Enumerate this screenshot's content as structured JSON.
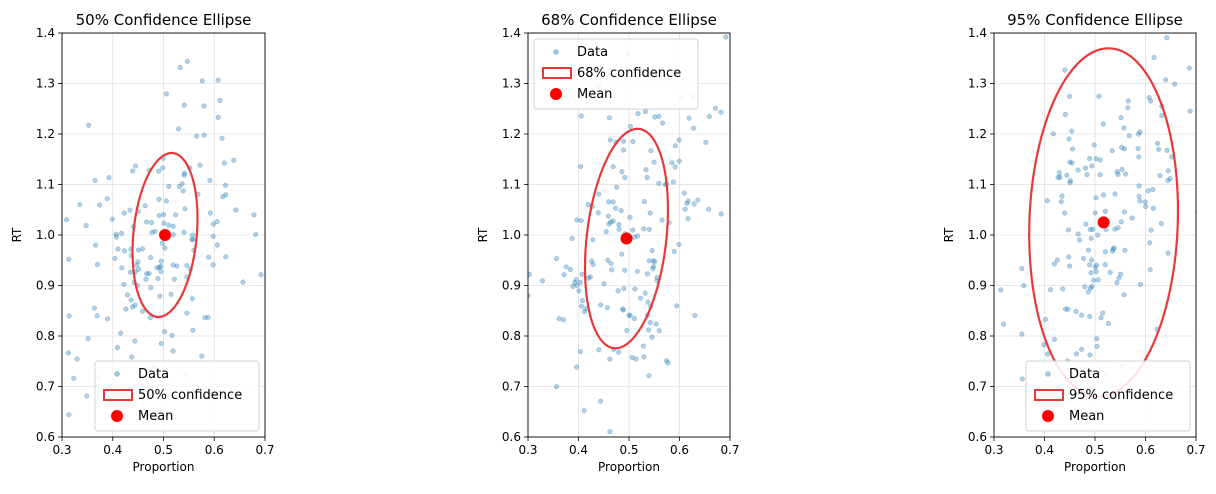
{
  "chart_data": [
    {
      "type": "scatter",
      "title": "50% Confidence Ellipse",
      "xlabel": "Proportion",
      "ylabel": "RT",
      "xlim": [
        0.3,
        0.7
      ],
      "ylim": [
        0.6,
        1.4
      ],
      "xticks": [
        "0.3",
        "0.4",
        "0.5",
        "0.6",
        "0.7"
      ],
      "yticks": [
        "0.6",
        "0.7",
        "0.8",
        "0.9",
        "1.0",
        "1.1",
        "1.2",
        "1.3",
        "1.4"
      ],
      "grid": true,
      "legend_position": "bottom-right",
      "legend": {
        "data": "Data",
        "ellipse": "50% confidence",
        "mean": "Mean"
      },
      "mean": {
        "x": 0.503,
        "y": 1.0
      },
      "ellipse": {
        "cx": 0.503,
        "cy": 1.0,
        "rx": 0.06,
        "ry": 0.17,
        "rotation_deg": 28
      },
      "seed": 7
    },
    {
      "type": "scatter",
      "title": "68% Confidence Ellipse",
      "xlabel": "Proportion",
      "ylabel": "RT",
      "xlim": [
        0.3,
        0.7
      ],
      "ylim": [
        0.6,
        1.4
      ],
      "xticks": [
        "0.3",
        "0.4",
        "0.5",
        "0.6",
        "0.7"
      ],
      "yticks": [
        "0.6",
        "0.7",
        "0.8",
        "0.9",
        "1.0",
        "1.1",
        "1.2",
        "1.3",
        "1.4"
      ],
      "grid": true,
      "legend_position": "top-left",
      "legend": {
        "data": "Data",
        "ellipse": "68% confidence",
        "mean": "Mean"
      },
      "mean": {
        "x": 0.495,
        "y": 0.993
      },
      "ellipse": {
        "cx": 0.495,
        "cy": 0.993,
        "rx": 0.075,
        "ry": 0.23,
        "rotation_deg": 28
      },
      "seed": 19
    },
    {
      "type": "scatter",
      "title": "95% Confidence Ellipse",
      "xlabel": "Proportion",
      "ylabel": "RT",
      "xlim": [
        0.3,
        0.7
      ],
      "ylim": [
        0.6,
        1.4
      ],
      "xticks": [
        "0.3",
        "0.4",
        "0.5",
        "0.6",
        "0.7"
      ],
      "yticks": [
        "0.6",
        "0.7",
        "0.8",
        "0.9",
        "1.0",
        "1.1",
        "1.2",
        "1.3",
        "1.4"
      ],
      "grid": true,
      "legend_position": "bottom-right",
      "legend": {
        "data": "Data",
        "ellipse": "95% confidence",
        "mean": "Mean"
      },
      "mean": {
        "x": 0.517,
        "y": 1.025
      },
      "ellipse": {
        "cx": 0.517,
        "cy": 1.025,
        "rx": 0.145,
        "ry": 0.35,
        "rotation_deg": 25
      },
      "seed": 31
    }
  ],
  "colors": {
    "points": "#1f77b4",
    "ellipse": "#e8393a",
    "mean": "#ff0000",
    "grid": "#e0e0e0",
    "axis": "#000000"
  }
}
